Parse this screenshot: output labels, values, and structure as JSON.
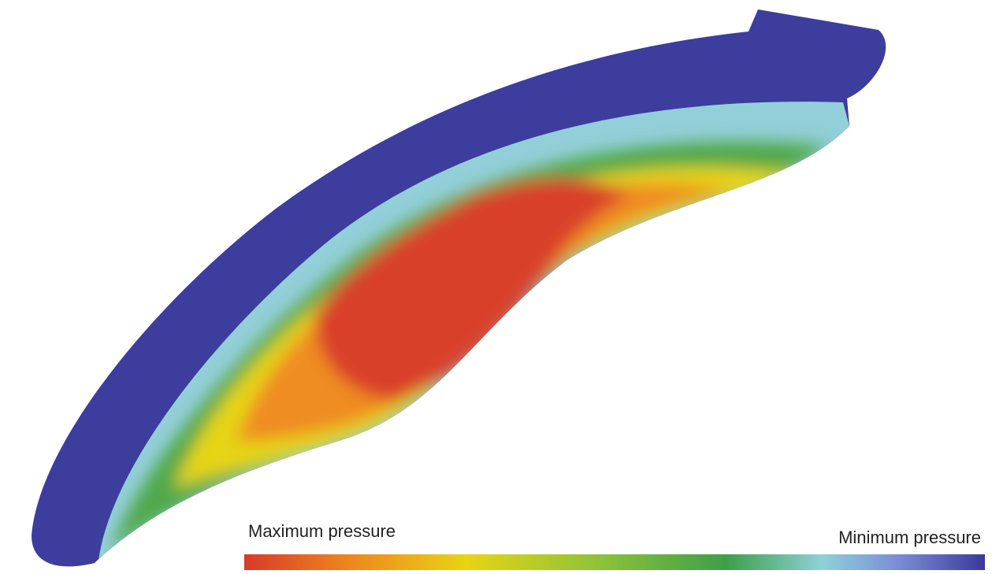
{
  "legend": {
    "max_label": "Maximum pressure",
    "min_label": "Minimum pressure"
  }
}
